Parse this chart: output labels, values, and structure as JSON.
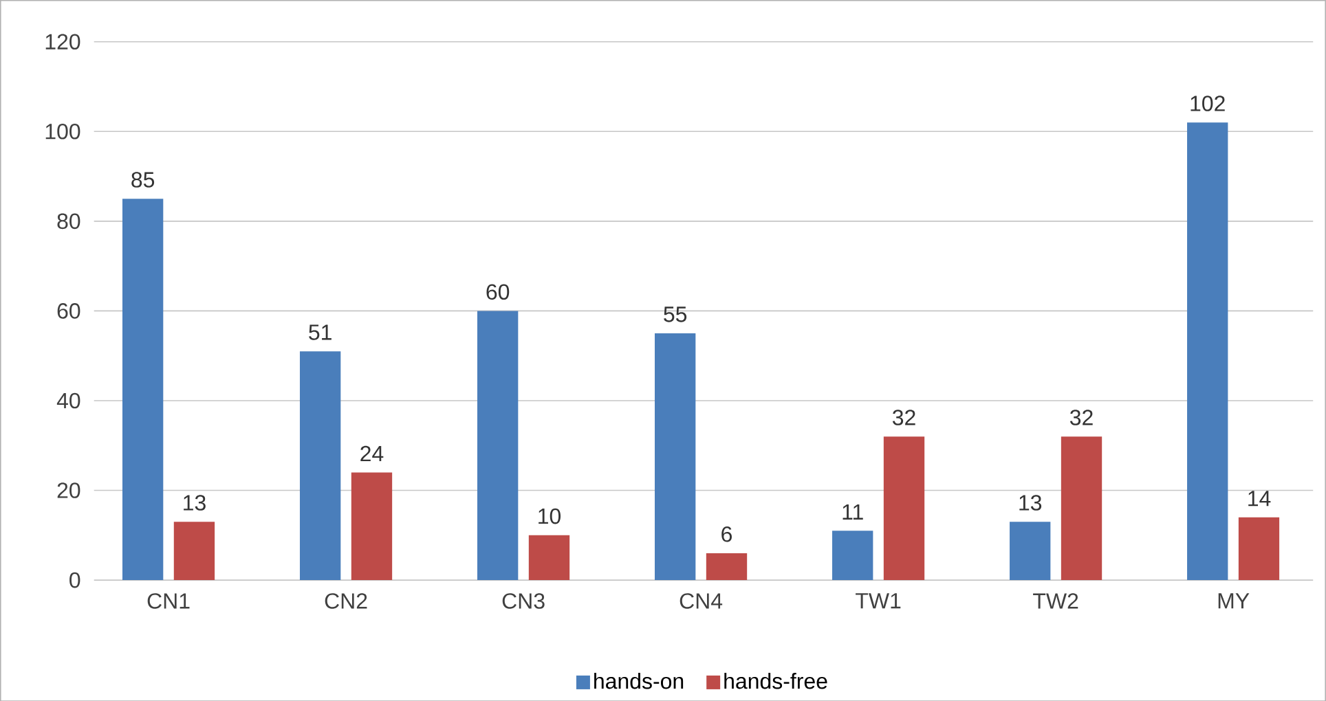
{
  "chart_data": {
    "type": "bar",
    "categories": [
      "CN1",
      "CN2",
      "CN3",
      "CN4",
      "TW1",
      "TW2",
      "MY"
    ],
    "series": [
      {
        "name": "hands-on",
        "color": "#4a7ebb",
        "values": [
          85,
          51,
          60,
          55,
          11,
          13,
          102
        ]
      },
      {
        "name": "hands-free",
        "color": "#be4b48",
        "values": [
          13,
          24,
          10,
          6,
          32,
          32,
          14
        ]
      }
    ],
    "ylim": [
      0,
      120
    ],
    "yticks": [
      0,
      20,
      40,
      60,
      80,
      100,
      120
    ],
    "grid": "y",
    "legend": "bottom",
    "data_labels": true
  }
}
